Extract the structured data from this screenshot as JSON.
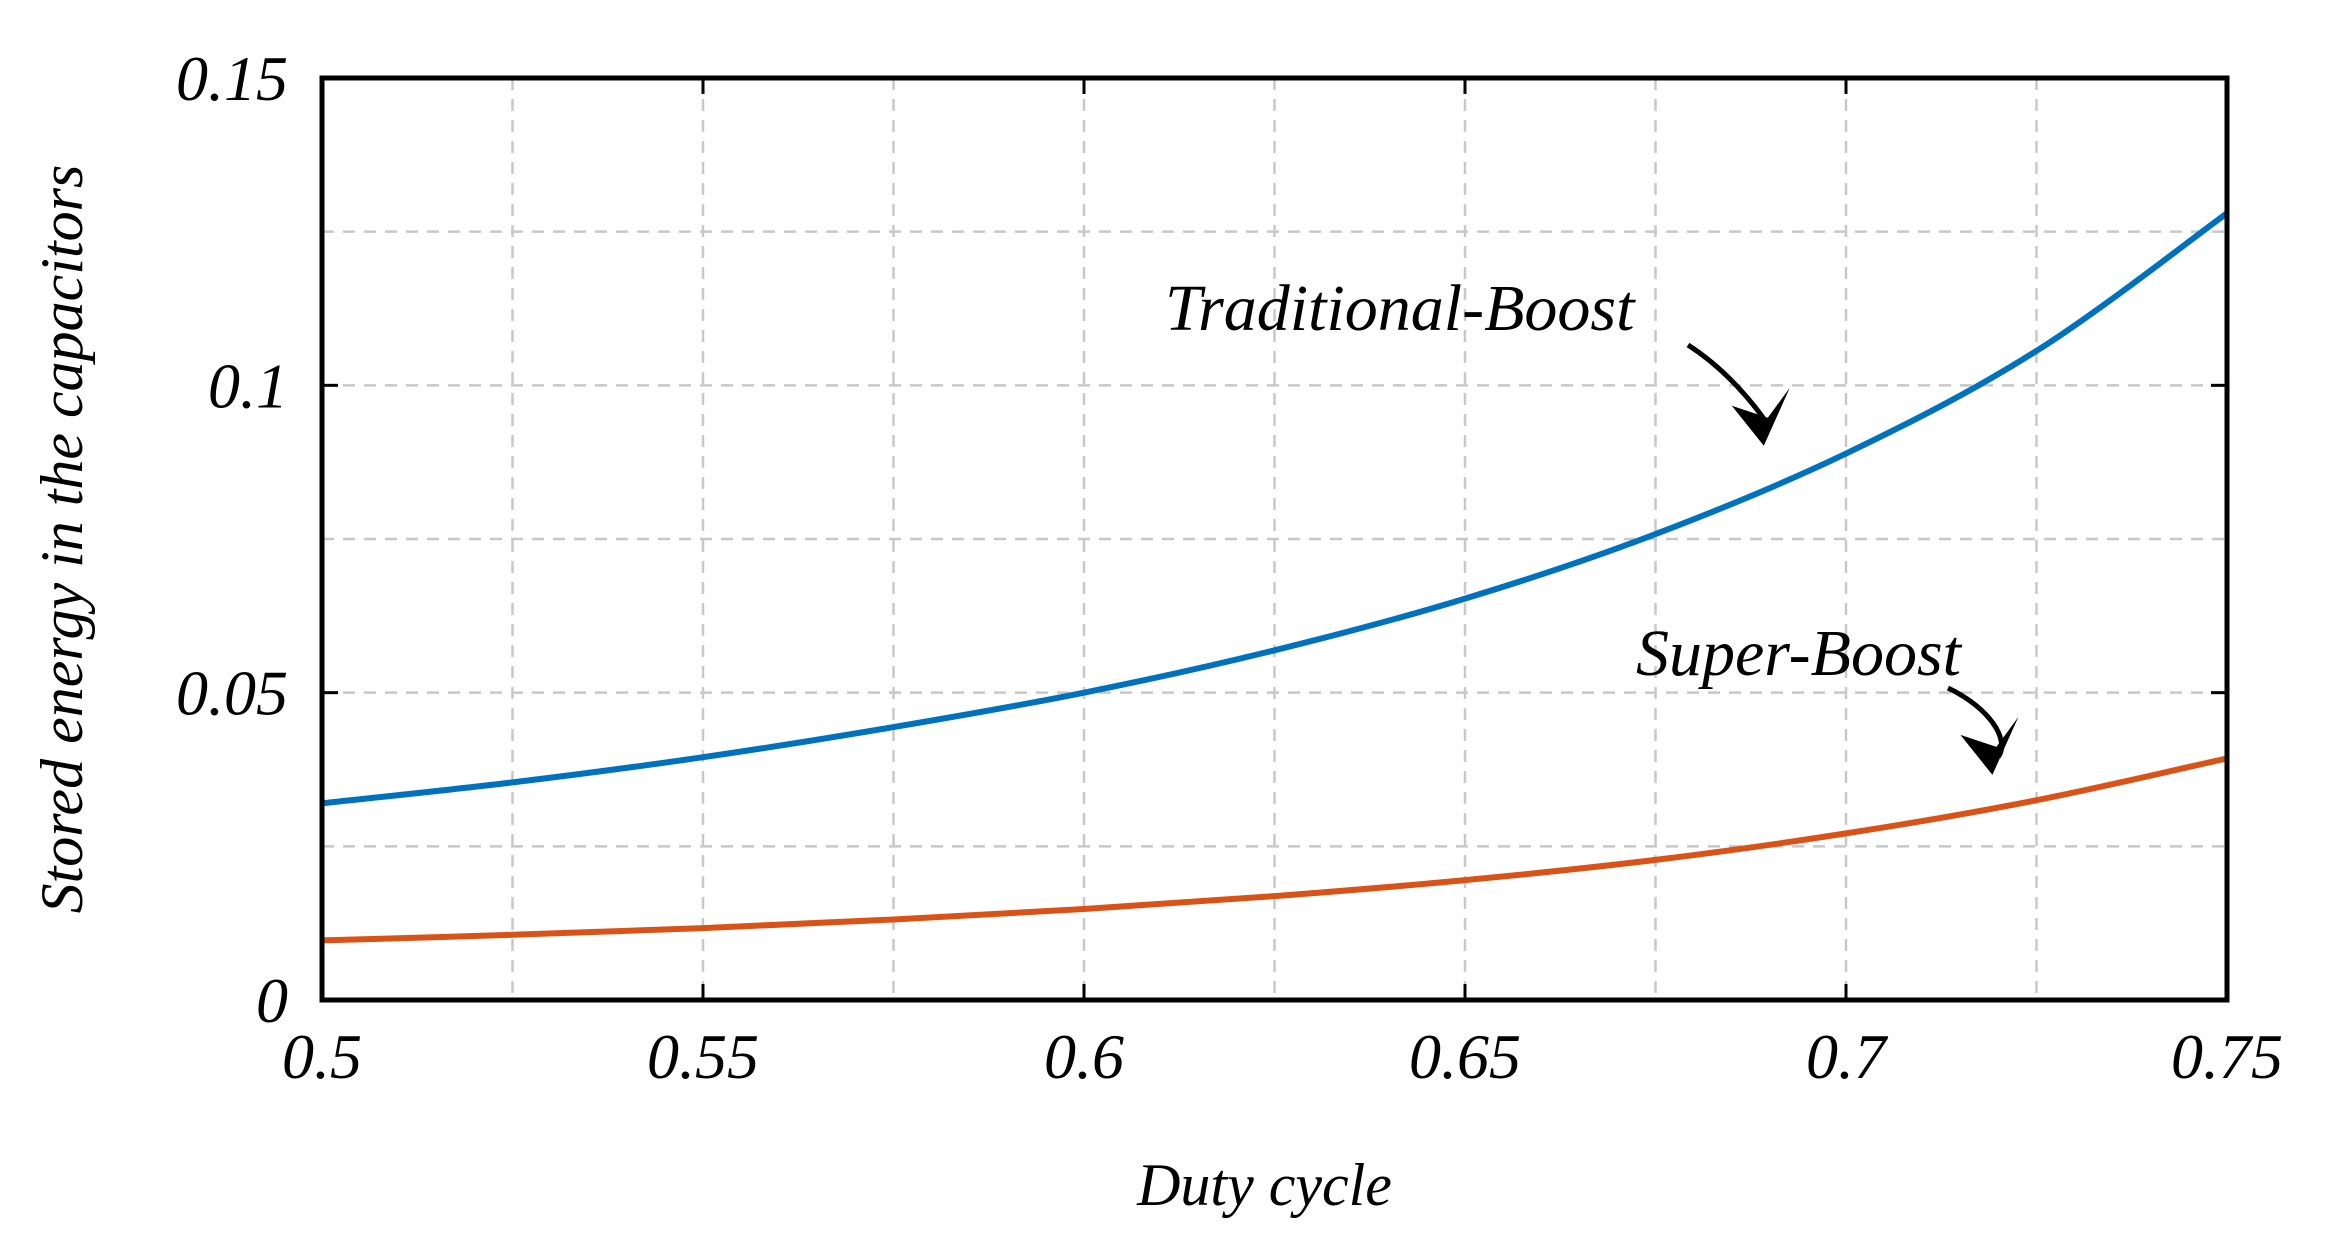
{
  "chart_data": {
    "type": "line",
    "title": "",
    "xlabel": "Duty cycle",
    "ylabel": "Stored energy in the capacitors",
    "xlim": [
      0.5,
      0.75
    ],
    "ylim": [
      0,
      0.15
    ],
    "grid": true,
    "x_ticks": [
      0.5,
      0.55,
      0.6,
      0.65,
      0.7,
      0.75
    ],
    "x_tick_labels": [
      "0.5",
      "0.55",
      "0.6",
      "0.65",
      "0.7",
      "0.75"
    ],
    "y_ticks": [
      0,
      0.05,
      0.1,
      0.15
    ],
    "y_tick_labels": [
      "0",
      "0.05",
      "0.1",
      "0.15"
    ],
    "x_grid": [
      0.5,
      0.525,
      0.55,
      0.575,
      0.6,
      0.625,
      0.65,
      0.675,
      0.7,
      0.725,
      0.75
    ],
    "y_grid": [
      0,
      0.025,
      0.05,
      0.075,
      0.1,
      0.125,
      0.15
    ],
    "series": [
      {
        "name": "Traditional-Boost",
        "color": "#0072BD",
        "x": [
          0.5,
          0.525,
          0.55,
          0.575,
          0.6,
          0.625,
          0.65,
          0.675,
          0.7,
          0.725,
          0.75
        ],
        "values": [
          0.032,
          0.0354,
          0.0395,
          0.0444,
          0.05,
          0.0569,
          0.0653,
          0.0758,
          0.0889,
          0.1056,
          0.128
        ]
      },
      {
        "name": "Super-Boost",
        "color": "#D95319",
        "x": [
          0.5,
          0.525,
          0.55,
          0.575,
          0.6,
          0.625,
          0.65,
          0.675,
          0.7,
          0.725,
          0.75
        ],
        "values": [
          0.0097,
          0.0106,
          0.0117,
          0.0131,
          0.0148,
          0.0169,
          0.0195,
          0.0228,
          0.0271,
          0.0325,
          0.0393
        ]
      }
    ],
    "annotations": [
      {
        "text": "Traditional-Boost",
        "points_to": "Traditional-Boost",
        "at_x": 0.69
      },
      {
        "text": "Super-Boost",
        "points_to": "Super-Boost",
        "at_x": 0.72
      }
    ]
  }
}
